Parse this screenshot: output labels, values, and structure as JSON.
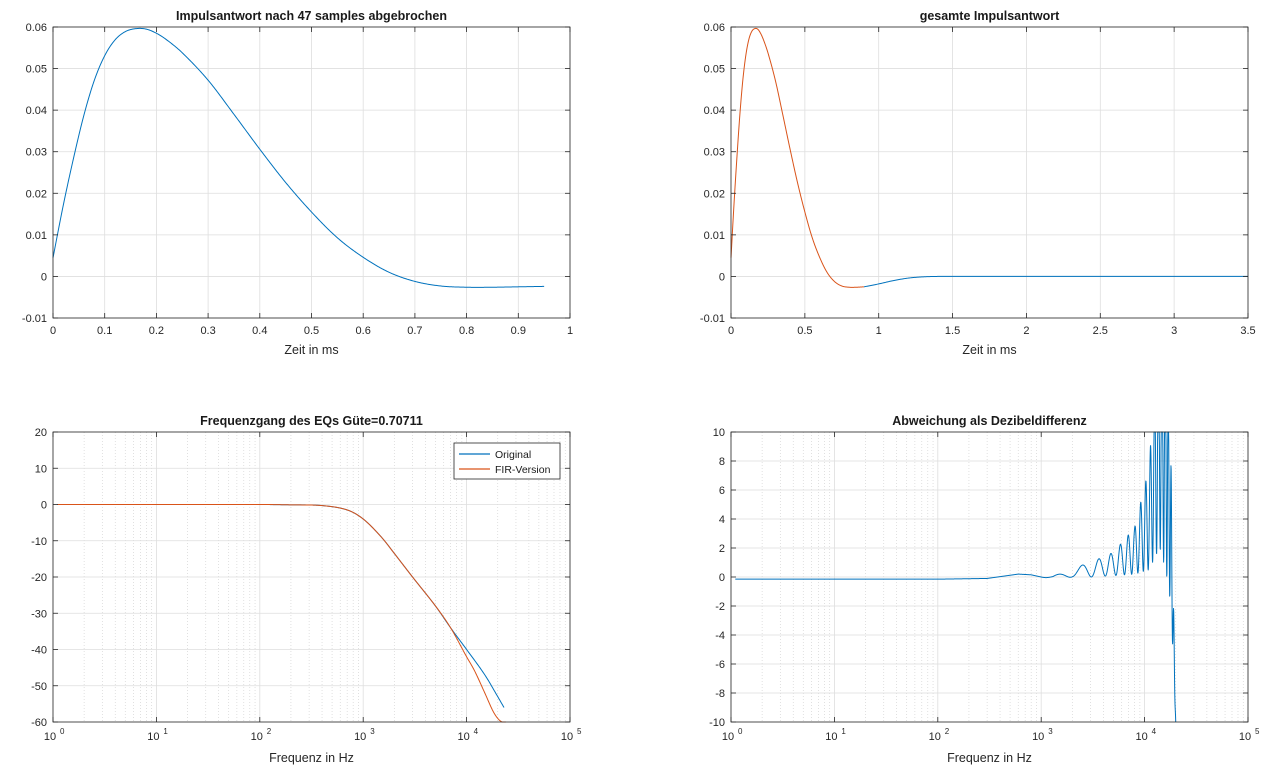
{
  "chart_data": [
    {
      "id": "p1",
      "type": "line",
      "title": "Impulsantwort nach 47 samples abgebrochen",
      "xlabel": "Zeit in ms",
      "ylabel": "",
      "xlim": [
        0,
        1
      ],
      "ylim": [
        -0.01,
        0.06
      ],
      "xscale": "linear",
      "xticks": [
        0,
        0.1,
        0.2,
        0.3,
        0.4,
        0.5,
        0.6,
        0.7,
        0.8,
        0.9,
        1
      ],
      "xtick_labels": [
        "0",
        "0.1",
        "0.2",
        "0.3",
        "0.4",
        "0.5",
        "0.6",
        "0.7",
        "0.8",
        "0.9",
        "1"
      ],
      "yticks": [
        -0.01,
        0,
        0.01,
        0.02,
        0.03,
        0.04,
        0.05,
        0.06
      ],
      "ytick_labels": [
        "-0.01",
        "0",
        "0.01",
        "0.02",
        "0.03",
        "0.04",
        "0.05",
        "0.06"
      ],
      "grid": true,
      "series": [
        {
          "color": "#0072BD",
          "x": [
            0,
            0.02,
            0.04,
            0.06,
            0.08,
            0.1,
            0.12,
            0.14,
            0.16,
            0.18,
            0.2,
            0.22,
            0.25,
            0.3,
            0.35,
            0.4,
            0.45,
            0.5,
            0.55,
            0.6,
            0.65,
            0.7,
            0.75,
            0.8,
            0.85,
            0.9,
            0.95
          ],
          "y": [
            0.0045,
            0.0172,
            0.0286,
            0.0389,
            0.0472,
            0.0531,
            0.0569,
            0.0589,
            0.0596,
            0.0595,
            0.0585,
            0.0569,
            0.0538,
            0.0472,
            0.039,
            0.0306,
            0.0226,
            0.0155,
            0.0093,
            0.0046,
            0.001,
            -0.0012,
            -0.0023,
            -0.0026,
            -0.0026,
            -0.0025,
            -0.0024
          ]
        }
      ]
    },
    {
      "id": "p2",
      "type": "line",
      "title": "gesamte Impulsantwort",
      "xlabel": "Zeit in ms",
      "ylabel": "",
      "xlim": [
        0,
        3.5
      ],
      "ylim": [
        -0.01,
        0.06
      ],
      "xscale": "linear",
      "xticks": [
        0,
        0.5,
        1,
        1.5,
        2,
        2.5,
        3,
        3.5
      ],
      "xtick_labels": [
        "0",
        "0.5",
        "1",
        "1.5",
        "2",
        "2.5",
        "3",
        "3.5"
      ],
      "yticks": [
        -0.01,
        0,
        0.01,
        0.02,
        0.03,
        0.04,
        0.05,
        0.06
      ],
      "ytick_labels": [
        "-0.01",
        "0",
        "0.01",
        "0.02",
        "0.03",
        "0.04",
        "0.05",
        "0.06"
      ],
      "grid": true,
      "series": [
        {
          "color": "#0072BD",
          "x": [
            0.9,
            1.0,
            1.1,
            1.2,
            1.3,
            1.4,
            1.5,
            2.0,
            2.5,
            3.0,
            3.5
          ],
          "y": [
            -0.0025,
            -0.0018,
            -0.001,
            -0.0004,
            -0.0001,
            0.0,
            0.0,
            0.0,
            0.0,
            0.0,
            0.0
          ]
        },
        {
          "color": "#D95319",
          "x": [
            0,
            0.02,
            0.04,
            0.06,
            0.08,
            0.1,
            0.12,
            0.14,
            0.16,
            0.18,
            0.2,
            0.22,
            0.25,
            0.3,
            0.35,
            0.4,
            0.45,
            0.5,
            0.55,
            0.6,
            0.65,
            0.7,
            0.75,
            0.8,
            0.85,
            0.9
          ],
          "y": [
            0.0045,
            0.0172,
            0.0286,
            0.0389,
            0.0472,
            0.0531,
            0.0569,
            0.0589,
            0.0596,
            0.0595,
            0.0585,
            0.0569,
            0.0538,
            0.0472,
            0.039,
            0.0306,
            0.0226,
            0.0155,
            0.0093,
            0.0046,
            0.001,
            -0.0012,
            -0.0023,
            -0.0026,
            -0.0026,
            -0.0025
          ]
        }
      ]
    },
    {
      "id": "p3",
      "type": "line",
      "title": "Frequenzgang des EQs Güte=0.70711",
      "xlabel": "Frequenz in Hz",
      "ylabel": "",
      "xlim": [
        1,
        100000
      ],
      "ylim": [
        -60,
        20
      ],
      "xscale": "log",
      "xticks": [
        1,
        10,
        100,
        1000,
        10000,
        100000
      ],
      "xtick_exponents": [
        "0",
        "1",
        "2",
        "3",
        "4",
        "5"
      ],
      "yticks": [
        -60,
        -50,
        -40,
        -30,
        -20,
        -10,
        0,
        10,
        20
      ],
      "ytick_labels": [
        "-60",
        "-50",
        "-40",
        "-30",
        "-20",
        "-10",
        "0",
        "10",
        "20"
      ],
      "grid": true,
      "minor_grid": true,
      "legend": {
        "position": "top-right",
        "entries": [
          {
            "label": "Original",
            "color": "#0072BD"
          },
          {
            "label": "FIR-Version",
            "color": "#D95319"
          }
        ]
      },
      "series": [
        {
          "name": "Original",
          "color": "#0072BD",
          "x": [
            1.1,
            10,
            100,
            200,
            400,
            700,
            1000,
            1500,
            2000,
            3000,
            5000,
            7000,
            10000,
            15000,
            20000,
            23000
          ],
          "y": [
            0,
            0,
            0,
            -0.1,
            -0.3,
            -1.5,
            -4,
            -9,
            -13.5,
            -20,
            -28,
            -34,
            -40,
            -47,
            -53,
            -56
          ]
        },
        {
          "name": "FIR-Version",
          "color": "#D95319",
          "x": [
            1.1,
            10,
            100,
            120,
            200,
            400,
            700,
            1000,
            1500,
            2000,
            3000,
            5000,
            7000,
            10000,
            12000,
            15000,
            18000,
            20000,
            22000,
            24000
          ],
          "y": [
            0,
            0,
            0,
            0,
            -0.1,
            -0.3,
            -1.5,
            -4,
            -9,
            -13.5,
            -20,
            -28,
            -34,
            -42,
            -46,
            -52,
            -57,
            -59,
            -60,
            -60
          ]
        }
      ]
    },
    {
      "id": "p4",
      "type": "line",
      "title": "Abweichung als Dezibeldifferenz",
      "xlabel": "Frequenz in Hz",
      "ylabel": "",
      "xlim": [
        1,
        100000
      ],
      "ylim": [
        -10,
        10
      ],
      "xscale": "log",
      "xticks": [
        1,
        10,
        100,
        1000,
        10000,
        100000
      ],
      "xtick_exponents": [
        "0",
        "1",
        "2",
        "3",
        "4",
        "5"
      ],
      "yticks": [
        -10,
        -8,
        -6,
        -4,
        -2,
        0,
        2,
        4,
        6,
        8,
        10
      ],
      "ytick_labels": [
        "-10",
        "-8",
        "-6",
        "-4",
        "-2",
        "0",
        "2",
        "4",
        "6",
        "8",
        "10"
      ],
      "grid": true,
      "minor_grid": true,
      "series": [
        {
          "color": "#0072BD",
          "x": [
            1.1,
            10,
            100,
            300,
            600,
            800,
            1000,
            1300,
            2000,
            3000,
            5000,
            8000,
            11000,
            14000,
            16000,
            18000,
            20000
          ],
          "y": [
            -0.15,
            -0.15,
            -0.15,
            -0.1,
            0.2,
            0.15,
            0,
            -0.1,
            0.3,
            0.5,
            0.9,
            1.8,
            4,
            10,
            9.5,
            3,
            -10
          ],
          "oscillation": [
            0,
            0,
            0,
            0,
            0,
            0,
            0,
            0.15,
            0.3,
            0.5,
            0.8,
            1.6,
            3.5,
            8,
            9,
            5,
            0
          ]
        }
      ]
    }
  ]
}
